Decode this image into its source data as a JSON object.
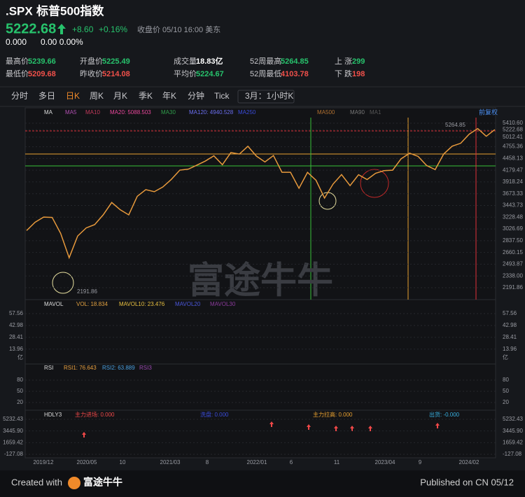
{
  "header": {
    "symbol": ".SPX",
    "name": "标普500指数",
    "price": "5222.68",
    "change": "+8.60",
    "change_pct": "+0.16%",
    "status": "收盘价 05/10 16:00 美东",
    "after_price": "0.000",
    "after_change": "0.00 0.00%"
  },
  "stats": [
    [
      {
        "label": "最高价",
        "value": "5239.66",
        "color": "#27c26c"
      },
      {
        "label": "开盘价",
        "value": "5225.49",
        "color": "#27c26c"
      },
      {
        "label": "成交量",
        "value": "18.83亿",
        "color": "#ffffff"
      },
      {
        "label": "52周最高",
        "value": "5264.85",
        "color": "#27c26c"
      },
      {
        "label": "上 涨",
        "value": "299",
        "color": "#27c26c"
      }
    ],
    [
      {
        "label": "最低价",
        "value": "5209.68",
        "color": "#f0504a"
      },
      {
        "label": "昨收价",
        "value": "5214.08",
        "color": "#f0504a"
      },
      {
        "label": "平均价",
        "value": "5224.67",
        "color": "#27c26c"
      },
      {
        "label": "52周最低",
        "value": "4103.78",
        "color": "#f0504a"
      },
      {
        "label": "下 跌",
        "value": "198",
        "color": "#f0504a"
      }
    ]
  ],
  "tabs": [
    "分时",
    "多日",
    "日K",
    "周K",
    "月K",
    "季K",
    "年K",
    "分钟",
    "Tick",
    "3月：1小时K"
  ],
  "active_tab": 2,
  "main_chart": {
    "legend": [
      {
        "text": "MA",
        "color": "#dddddd"
      },
      {
        "text": "MA5",
        "color": "#b04fb0"
      },
      {
        "text": "MA10",
        "color": "#c0395a"
      },
      {
        "text": "MA20: 5088.503",
        "color": "#e8479b"
      },
      {
        "text": "MA30",
        "color": "#2f9c4a"
      },
      {
        "text": "MA120: 4940.528",
        "color": "#6b6ff0"
      },
      {
        "text": "MA250",
        "color": "#3a4bd8"
      },
      {
        "text": "MA500",
        "color": "#b07030"
      },
      {
        "text": "MA90",
        "color": "#777777"
      },
      {
        "text": "MA1",
        "color": "#555555"
      }
    ],
    "adjust": "前复权",
    "log_scale": true,
    "ylim": [
      2191.86,
      5410.6
    ],
    "yticks": [
      5410.6,
      5222.68,
      5012.41,
      4755.36,
      4458.13,
      4179.47,
      3918.24,
      3673.33,
      3443.73,
      3228.48,
      3026.69,
      2837.5,
      2660.15,
      2493.87,
      2338.0,
      2191.86
    ],
    "ytick_labels": [
      "5410.60",
      "5222.68",
      "5012.41",
      "4755.36",
      "4458.13",
      "4179.47",
      "3918.24",
      "3673.33",
      "3443.73",
      "3228.48",
      "3026.69",
      "2837.50",
      "2660.15",
      "2493.87",
      "2338.00",
      "2191.86"
    ],
    "high_label": "5264.85",
    "low_label": "2191.86",
    "close": [
      3000,
      3140,
      3230,
      3225,
      2954,
      2584,
      2912,
      3044,
      3100,
      3271,
      3500,
      3363,
      3270,
      3621,
      3756,
      3714,
      3811,
      3973,
      4181,
      4204,
      4297,
      4395,
      4523,
      4307,
      4605,
      4567,
      4766,
      4516,
      4374,
      4530,
      4132,
      4132,
      3785,
      4130,
      3955,
      3586,
      3872,
      4080,
      3840,
      4077,
      3970,
      4109,
      4169,
      4180,
      4450,
      4589,
      4508,
      4288,
      4194,
      4568,
      4770,
      4846,
      5096,
      5254,
      5036,
      5222.68
    ],
    "color": "#e89a3c",
    "watermark": "富途牛牛"
  },
  "volume_panel": {
    "legend": [
      {
        "text": "MAVOL",
        "color": "#dddddd"
      },
      {
        "text": "VOL: 18.834",
        "color": "#e0a040"
      },
      {
        "text": "MAVOL10: 23.476",
        "color": "#e8c040"
      },
      {
        "text": "MAVOL20",
        "color": "#4a56d8"
      },
      {
        "text": "MAVOL30",
        "color": "#8a3a9a"
      }
    ],
    "ylim": [
      0,
      57.56
    ],
    "yticks": [
      57.56,
      42.98,
      28.41,
      13.96
    ],
    "unit": "亿"
  },
  "rsi_panel": {
    "legend": [
      {
        "text": "RSI",
        "color": "#dddddd"
      },
      {
        "text": "RSI1: 76.643",
        "color": "#e8a040"
      },
      {
        "text": "RSI2: 63.889",
        "color": "#4aa0e0"
      },
      {
        "text": "RSI3",
        "color": "#9a4ab0"
      }
    ],
    "ylim": [
      20,
      80
    ],
    "yticks": [
      80,
      50,
      20
    ]
  },
  "hdly_panel": {
    "legend": [
      {
        "text": "HDLY3",
        "color": "#dddddd"
      },
      {
        "text": "主力进场: 0.000",
        "color": "#f04848"
      },
      {
        "text": "洗盘: 0.000",
        "color": "#3a4bd8"
      },
      {
        "text": "主力拉高: 0.000",
        "color": "#e8a030"
      },
      {
        "text": "出货: -0.000",
        "color": "#38b0e0"
      }
    ],
    "ylim": [
      -127.08,
      5232.43
    ],
    "yticks": [
      5232.43,
      3445.9,
      1659.42,
      -127.08
    ],
    "ytick_labels": [
      "5232.43",
      "3445.90",
      "1659.42",
      "-127.08"
    ]
  },
  "x_labels": [
    "2019/12",
    "2020/05",
    "10",
    "2021/03",
    "8",
    "2022/01",
    "6",
    "11",
    "2023/04",
    "9",
    "2024/02"
  ],
  "footer": {
    "created": "Created with",
    "brand": "富途牛牛",
    "published": "Published on CN 05/12"
  }
}
